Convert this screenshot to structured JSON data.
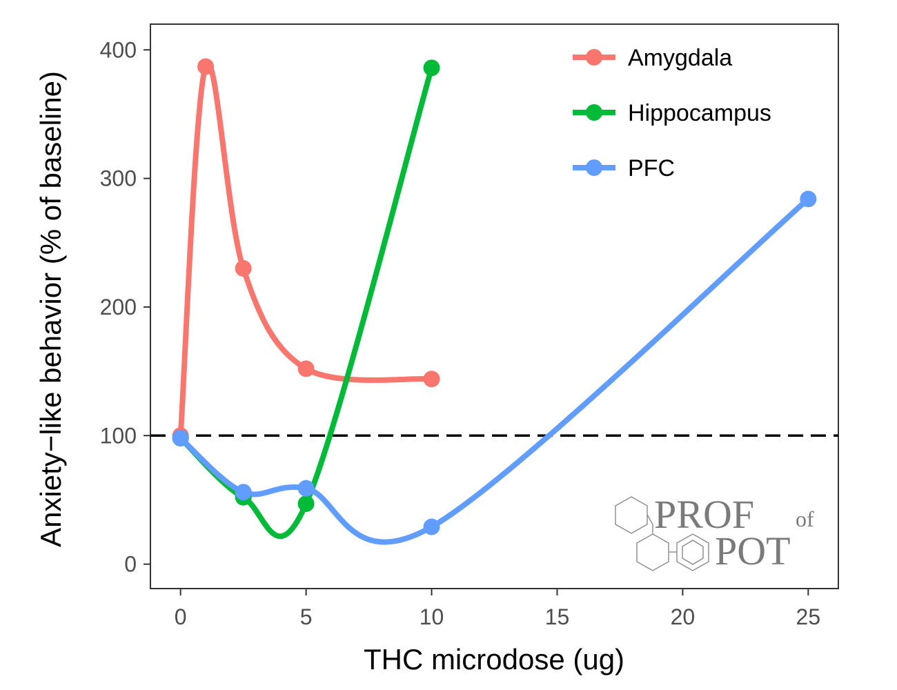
{
  "chart_data": {
    "type": "line",
    "title": "",
    "xlabel": "THC microdose (ug)",
    "ylabel": "Anxiety−like behavior (% of baseline)",
    "xlim": [
      -1.2,
      26.2
    ],
    "ylim": [
      -19,
      420
    ],
    "x_ticks": [
      0,
      5,
      10,
      15,
      20,
      25
    ],
    "y_ticks": [
      0,
      100,
      200,
      300,
      400
    ],
    "grid": false,
    "legend_position": "top-right",
    "reference_line": {
      "y": 100,
      "style": "dashed",
      "color": "#000000"
    },
    "series": [
      {
        "name": "Amygdala",
        "color": "#F8766D",
        "x": [
          0,
          1,
          2.5,
          5,
          10
        ],
        "y": [
          100,
          387,
          230,
          152,
          144
        ]
      },
      {
        "name": "Hippocampus",
        "color": "#00BA38",
        "x": [
          0,
          2.5,
          5,
          10
        ],
        "y": [
          98,
          52,
          47,
          386
        ]
      },
      {
        "name": "PFC",
        "color": "#619CFF",
        "x": [
          0,
          2.5,
          5,
          10,
          25
        ],
        "y": [
          98,
          56,
          59,
          29,
          284
        ]
      }
    ]
  },
  "watermark": {
    "line1_main": "PROF",
    "line1_small": "of",
    "line2": "POT"
  }
}
